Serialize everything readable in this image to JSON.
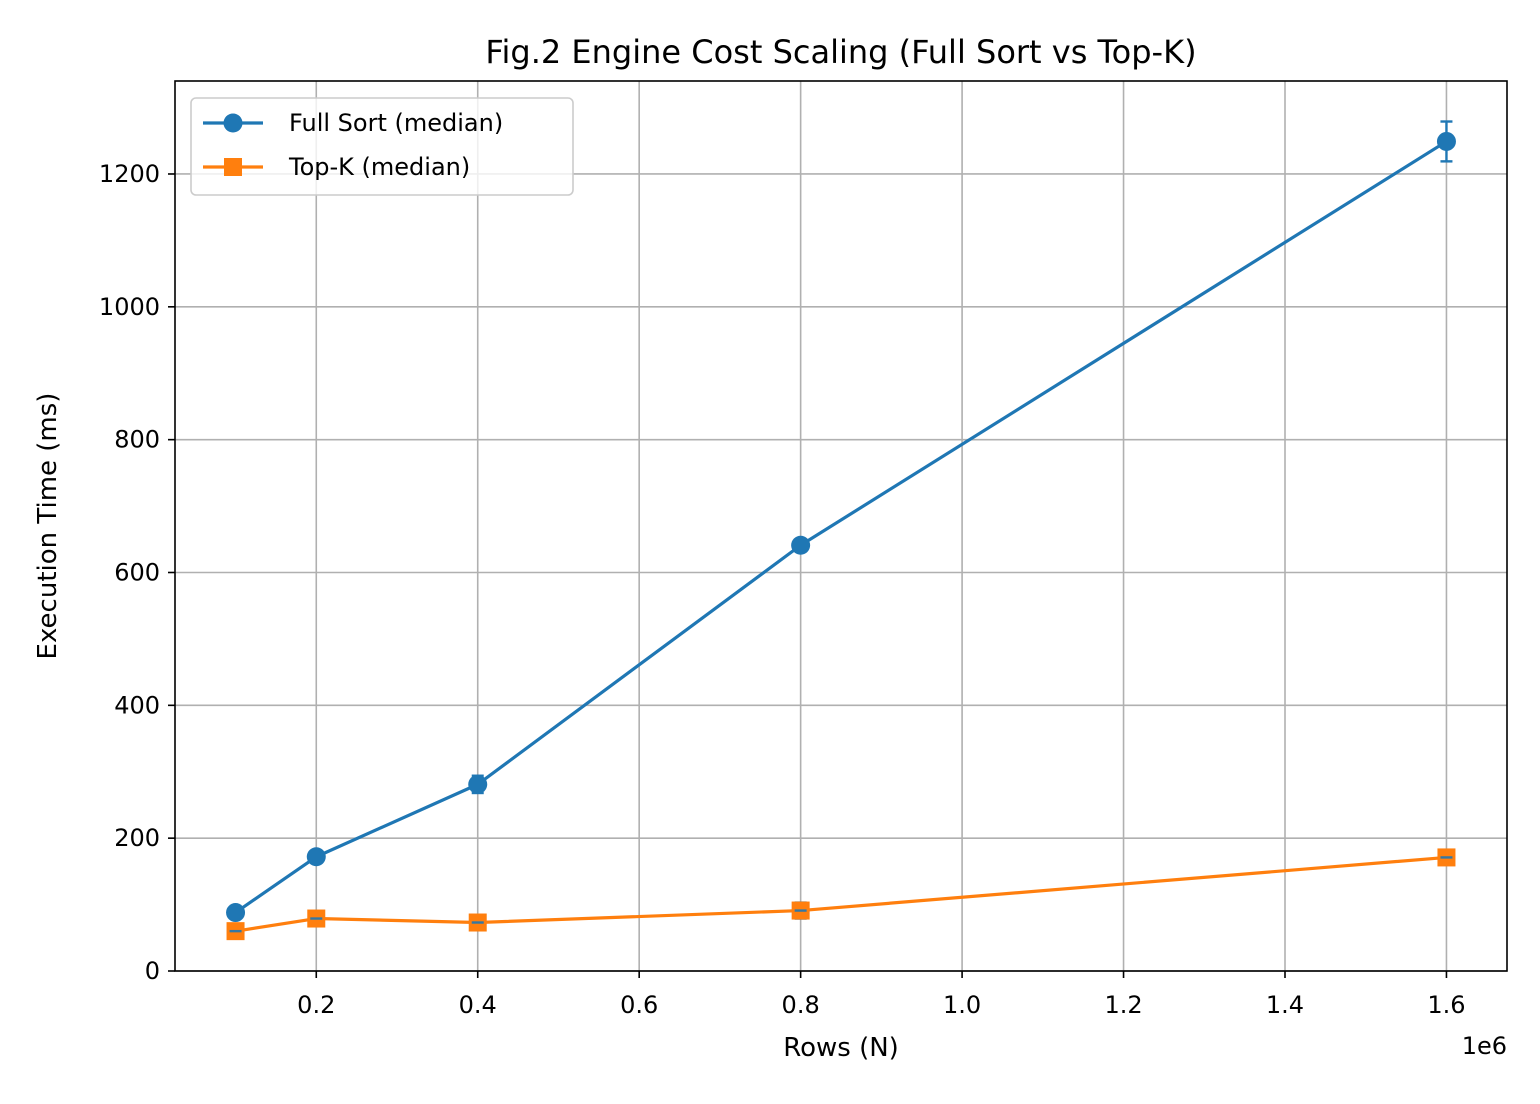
{
  "chart_data": {
    "type": "line",
    "title": "Fig.2 Engine Cost Scaling (Full Sort vs Top-K)",
    "xlabel": "Rows (N)",
    "ylabel": "Execution Time (ms)",
    "x_offset_label": "1e6",
    "x_scale": 1000000,
    "xlim": [
      25000,
      1675000
    ],
    "ylim": [
      0,
      1340
    ],
    "x_ticks": [
      200000,
      400000,
      600000,
      800000,
      1000000,
      1200000,
      1400000,
      1600000
    ],
    "x_tick_labels": [
      "0.2",
      "0.4",
      "0.6",
      "0.8",
      "1.0",
      "1.2",
      "1.4",
      "1.6"
    ],
    "y_ticks": [
      0,
      200,
      400,
      600,
      800,
      1000,
      1200
    ],
    "y_tick_labels": [
      "0",
      "200",
      "400",
      "600",
      "800",
      "1000",
      "1200"
    ],
    "grid": true,
    "legend_position": "upper-left",
    "x": [
      100000,
      200000,
      400000,
      800000,
      1600000
    ],
    "series": [
      {
        "name": "Full Sort (median)",
        "color": "#1f77b4",
        "marker": "circle",
        "values": [
          88,
          172,
          281,
          641,
          1249
        ],
        "errors": [
          3,
          4,
          13,
          5,
          30
        ]
      },
      {
        "name": "Top-K (median)",
        "color": "#ff7f0e",
        "marker": "square",
        "values": [
          60,
          79,
          73,
          91,
          171
        ],
        "errors": [
          2,
          3,
          4,
          12,
          3
        ]
      }
    ]
  }
}
